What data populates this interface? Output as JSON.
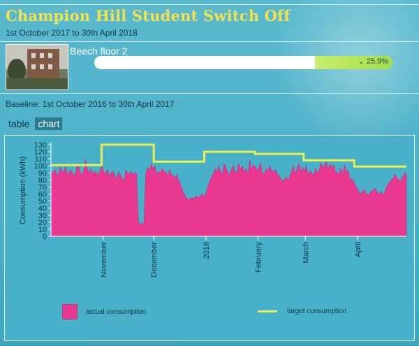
{
  "header": {
    "title": "Champion Hill Student Switch Off",
    "date_range": "1st October 2017 to 30th April 2018"
  },
  "building": {
    "name": "Beech floor 2",
    "progress_percent_text": "25.9%",
    "progress_fraction": 0.259
  },
  "baseline_text": "Baseline: 1st October 2016 to 30th April 2017",
  "tabs": [
    {
      "label": "table",
      "active": false
    },
    {
      "label": "chart",
      "active": true
    }
  ],
  "colors": {
    "title": "#f4e24a",
    "actual": "#e8388f",
    "target": "#e9f04f",
    "progress_fill": "#a5dc48"
  },
  "chart_data": {
    "type": "area",
    "ylabel": "Consumption (kWh)",
    "ylim": [
      0,
      130
    ],
    "yticks": [
      0,
      10,
      20,
      30,
      40,
      50,
      60,
      70,
      80,
      90,
      100,
      110,
      120,
      130
    ],
    "x_start": "2017-10-01",
    "x_end": "2018-04-30",
    "xtick_labels": [
      {
        "date": "2017-11-01",
        "label": "November"
      },
      {
        "date": "2017-12-01",
        "label": "December"
      },
      {
        "date": "2018-01-01",
        "label": "2018"
      },
      {
        "date": "2018-02-01",
        "label": "February"
      },
      {
        "date": "2018-03-01",
        "label": "March"
      },
      {
        "date": "2018-04-01",
        "label": "April"
      }
    ],
    "series": [
      {
        "name": "actual consumption",
        "kind": "area",
        "start_date": "2017-10-01",
        "values": [
          92,
          88,
          95,
          90,
          85,
          98,
          93,
          90,
          99,
          87,
          91,
          94,
          88,
          86,
          96,
          102,
          90,
          88,
          92,
          110,
          95,
          90,
          96,
          88,
          92,
          90,
          87,
          94,
          100,
          91,
          88,
          95,
          84,
          90,
          92,
          86,
          80,
          91,
          88,
          82,
          78,
          94,
          90,
          88,
          93,
          86,
          91,
          89,
          18,
          18,
          18,
          18,
          88,
          98,
          92,
          104,
          95,
          100,
          88,
          92,
          90,
          96,
          93,
          91,
          85,
          94,
          88,
          86,
          82,
          88,
          80,
          74,
          66,
          60,
          56,
          52,
          53,
          55,
          53,
          56,
          57,
          54,
          58,
          60,
          56,
          62,
          70,
          78,
          84,
          88,
          96,
          91,
          100,
          93,
          86,
          104,
          97,
          90,
          88,
          94,
          101,
          89,
          92,
          104,
          95,
          100,
          91,
          96,
          87,
          108,
          95,
          101,
          99,
          93,
          97,
          104,
          89,
          88,
          96,
          92,
          100,
          94,
          90,
          95,
          89,
          86,
          82,
          78,
          80,
          84,
          79,
          85,
          92,
          100,
          88,
          96,
          104,
          90,
          98,
          92,
          100,
          87,
          93,
          90,
          85,
          96,
          91,
          92,
          104,
          98,
          100,
          106,
          95,
          103,
          97,
          102,
          92,
          90,
          88,
          98,
          86,
          102,
          90,
          94,
          80,
          82,
          78,
          72,
          68,
          62,
          60,
          64,
          66,
          60,
          58,
          62,
          64,
          66,
          68,
          62,
          60,
          64,
          58,
          62,
          70,
          74,
          78,
          80,
          84,
          88,
          82,
          80,
          78,
          84,
          90,
          88
        ]
      },
      {
        "name": "target consumption",
        "kind": "step-line",
        "steps": [
          {
            "from": "2017-10-01",
            "to": "2017-10-31",
            "value": 101
          },
          {
            "from": "2017-10-31",
            "to": "2017-12-01",
            "value": 130
          },
          {
            "from": "2017-12-01",
            "to": "2017-12-31",
            "value": 106
          },
          {
            "from": "2017-12-31",
            "to": "2018-01-30",
            "value": 120
          },
          {
            "from": "2018-01-30",
            "to": "2018-02-28",
            "value": 117
          },
          {
            "from": "2018-02-28",
            "to": "2018-03-30",
            "value": 108
          },
          {
            "from": "2018-03-30",
            "to": "2018-04-30",
            "value": 99
          }
        ]
      }
    ],
    "grid": false,
    "legend_position": "bottom"
  },
  "legend": {
    "actual_label": "actual consumption",
    "target_label": "target consumption"
  }
}
